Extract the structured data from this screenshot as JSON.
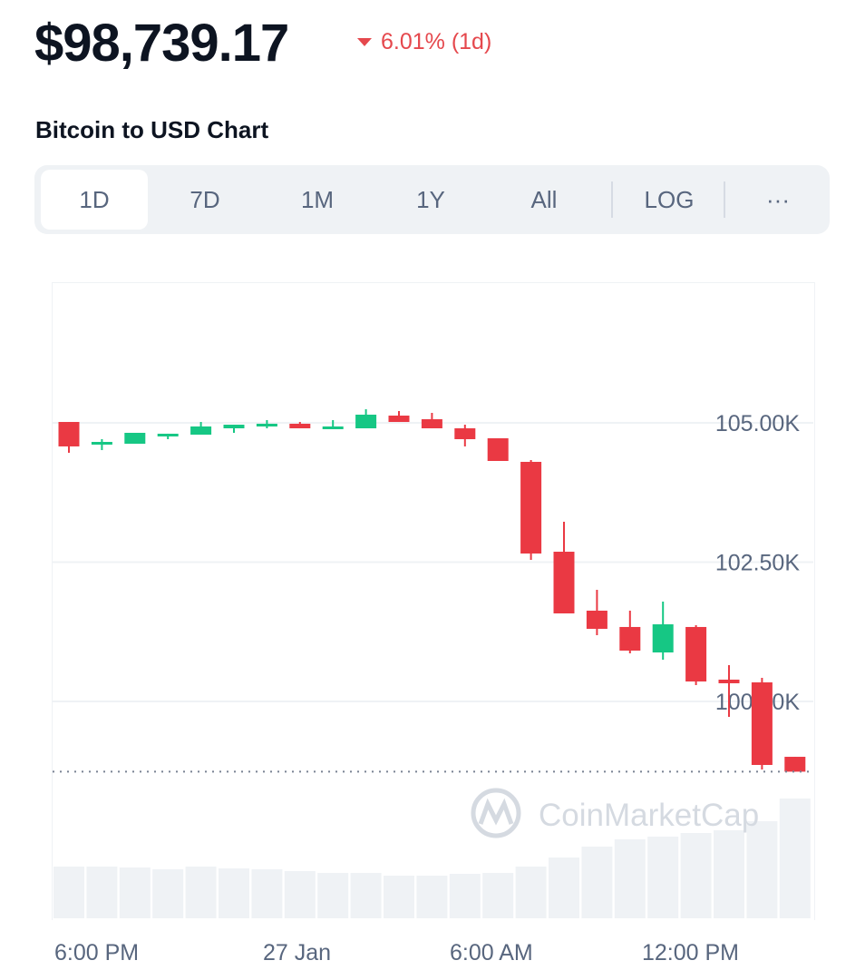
{
  "header": {
    "price": "$98,739.17",
    "change": "6.01% (1d)",
    "change_direction": "down",
    "change_icon": "caret-down-icon",
    "chart_title": "Bitcoin to USD Chart"
  },
  "tabs": [
    {
      "label": "1D",
      "active": true
    },
    {
      "label": "7D",
      "active": false
    },
    {
      "label": "1M",
      "active": false
    },
    {
      "label": "1Y",
      "active": false
    },
    {
      "label": "All",
      "active": false
    },
    {
      "label": "LOG",
      "active": false
    },
    {
      "label": "···",
      "active": false
    }
  ],
  "colors": {
    "up": "#16c784",
    "down": "#ea3943",
    "volume": "#eff2f5",
    "accent": "#e5484d"
  },
  "watermark": "CoinMarketCap",
  "chart_data": {
    "type": "candlestick",
    "y_axis_position": "right",
    "y_ticks": [
      "105.00K",
      "102.50K",
      "100.00K"
    ],
    "y_tick_values": [
      105000,
      102500,
      100000
    ],
    "x_ticks": [
      "6:00 PM",
      "27 Jan",
      "6:00 AM",
      "12:00 PM"
    ],
    "grid": true,
    "current_price_line": 98739.17,
    "candles": [
      {
        "o": 105016,
        "h": 105016,
        "l": 104463,
        "c": 104577
      },
      {
        "o": 104609,
        "h": 104707,
        "l": 104511,
        "c": 104658
      },
      {
        "o": 104625,
        "h": 104821,
        "l": 104625,
        "c": 104821
      },
      {
        "o": 104772,
        "h": 104805,
        "l": 104707,
        "c": 104805
      },
      {
        "o": 104788,
        "h": 105016,
        "l": 104788,
        "c": 104935
      },
      {
        "o": 104902,
        "h": 104967,
        "l": 104821,
        "c": 104967
      },
      {
        "o": 104935,
        "h": 105049,
        "l": 104902,
        "c": 104984
      },
      {
        "o": 104984,
        "h": 105016,
        "l": 104902,
        "c": 104902
      },
      {
        "o": 104919,
        "h": 105049,
        "l": 104919,
        "c": 104935
      },
      {
        "o": 104902,
        "h": 105244,
        "l": 104902,
        "c": 105147
      },
      {
        "o": 105130,
        "h": 105212,
        "l": 105016,
        "c": 105016
      },
      {
        "o": 105065,
        "h": 105179,
        "l": 104902,
        "c": 104902
      },
      {
        "o": 104902,
        "h": 104967,
        "l": 104577,
        "c": 104707
      },
      {
        "o": 104723,
        "h": 104723,
        "l": 104316,
        "c": 104316
      },
      {
        "o": 104300,
        "h": 104332,
        "l": 102541,
        "c": 102655
      },
      {
        "o": 102687,
        "h": 103225,
        "l": 101580,
        "c": 101580
      },
      {
        "o": 101629,
        "h": 102003,
        "l": 101189,
        "c": 101303
      },
      {
        "o": 101336,
        "h": 101629,
        "l": 100863,
        "c": 100912
      },
      {
        "o": 100879,
        "h": 101792,
        "l": 100749,
        "c": 101384
      },
      {
        "o": 101336,
        "h": 101368,
        "l": 100293,
        "c": 100358
      },
      {
        "o": 100391,
        "h": 100651,
        "l": 99723,
        "c": 100326
      },
      {
        "o": 100342,
        "h": 100423,
        "l": 98778,
        "c": 98860
      },
      {
        "o": 99006,
        "h": 99006,
        "l": 98739,
        "c": 98739
      }
    ],
    "volume_relative": [
      57,
      57,
      56,
      54,
      57,
      55,
      54,
      52,
      50,
      50,
      47,
      47,
      49,
      50,
      57,
      67,
      79,
      87,
      90,
      94,
      97,
      107,
      132
    ]
  }
}
